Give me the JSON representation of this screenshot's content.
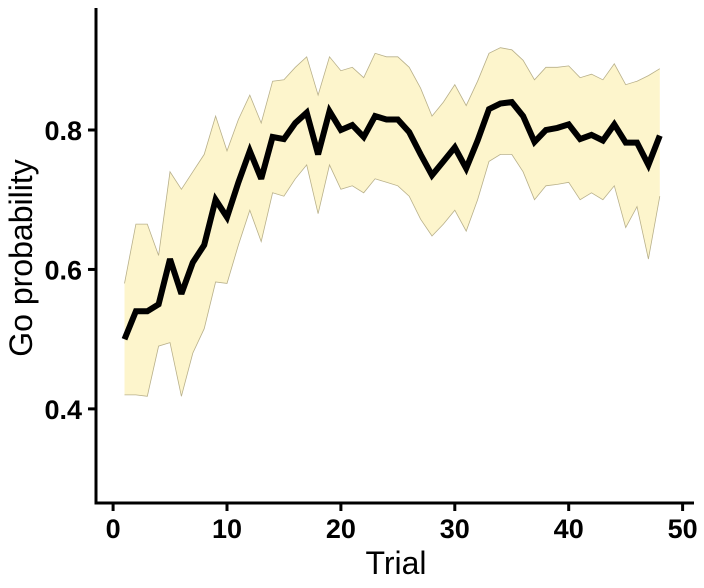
{
  "chart_data": {
    "type": "area",
    "title": "",
    "xlabel": "Trial",
    "ylabel": "Go probability",
    "xlim": [
      -1.5,
      51
    ],
    "ylim": [
      0.265,
      0.975
    ],
    "xticks": [
      0,
      10,
      20,
      30,
      40,
      50
    ],
    "yticks": [
      0.4,
      0.6,
      0.8
    ],
    "xtick_labels": [
      "0",
      "10",
      "20",
      "30",
      "40",
      "50"
    ],
    "ytick_labels": [
      "0.4",
      "0.6",
      "0.8"
    ],
    "grid": false,
    "legend": "none",
    "colors": {
      "line": "#000000",
      "band_fill": "#fdf5cc",
      "band_edge": "#b8b08a",
      "axis": "#000000"
    },
    "series": [
      {
        "role": "mean",
        "x": [
          1,
          2,
          3,
          4,
          5,
          6,
          7,
          8,
          9,
          10,
          11,
          12,
          13,
          14,
          15,
          16,
          17,
          18,
          19,
          20,
          21,
          22,
          23,
          24,
          25,
          26,
          27,
          28,
          29,
          30,
          31,
          32,
          33,
          34,
          35,
          36,
          37,
          38,
          39,
          40,
          41,
          42,
          43,
          44,
          45,
          46,
          47,
          48
        ],
        "y": [
          0.5,
          0.54,
          0.54,
          0.55,
          0.615,
          0.565,
          0.61,
          0.635,
          0.7,
          0.675,
          0.725,
          0.77,
          0.73,
          0.79,
          0.787,
          0.81,
          0.825,
          0.765,
          0.827,
          0.8,
          0.807,
          0.79,
          0.82,
          0.815,
          0.815,
          0.797,
          0.765,
          0.735,
          0.755,
          0.775,
          0.745,
          0.785,
          0.83,
          0.838,
          0.84,
          0.82,
          0.783,
          0.8,
          0.803,
          0.808,
          0.787,
          0.793,
          0.785,
          0.808,
          0.782,
          0.782,
          0.75,
          0.792
        ]
      },
      {
        "role": "upper",
        "x": [
          1,
          2,
          3,
          4,
          5,
          6,
          7,
          8,
          9,
          10,
          11,
          12,
          13,
          14,
          15,
          16,
          17,
          18,
          19,
          20,
          21,
          22,
          23,
          24,
          25,
          26,
          27,
          28,
          29,
          30,
          31,
          32,
          33,
          34,
          35,
          36,
          37,
          38,
          39,
          40,
          41,
          42,
          43,
          44,
          45,
          46,
          47,
          48
        ],
        "y": [
          0.58,
          0.665,
          0.665,
          0.62,
          0.74,
          0.715,
          0.74,
          0.765,
          0.82,
          0.77,
          0.815,
          0.85,
          0.81,
          0.87,
          0.872,
          0.89,
          0.905,
          0.85,
          0.905,
          0.885,
          0.89,
          0.875,
          0.91,
          0.905,
          0.905,
          0.89,
          0.86,
          0.82,
          0.84,
          0.865,
          0.835,
          0.87,
          0.91,
          0.918,
          0.915,
          0.9,
          0.872,
          0.89,
          0.89,
          0.892,
          0.875,
          0.88,
          0.872,
          0.895,
          0.865,
          0.87,
          0.878,
          0.888
        ]
      },
      {
        "role": "lower",
        "x": [
          1,
          2,
          3,
          4,
          5,
          6,
          7,
          8,
          9,
          10,
          11,
          12,
          13,
          14,
          15,
          16,
          17,
          18,
          19,
          20,
          21,
          22,
          23,
          24,
          25,
          26,
          27,
          28,
          29,
          30,
          31,
          32,
          33,
          34,
          35,
          36,
          37,
          38,
          39,
          40,
          41,
          42,
          43,
          44,
          45,
          46,
          47,
          48
        ],
        "y": [
          0.42,
          0.42,
          0.418,
          0.49,
          0.495,
          0.418,
          0.48,
          0.515,
          0.582,
          0.58,
          0.635,
          0.685,
          0.64,
          0.71,
          0.705,
          0.73,
          0.75,
          0.68,
          0.75,
          0.715,
          0.72,
          0.71,
          0.73,
          0.725,
          0.72,
          0.705,
          0.672,
          0.648,
          0.665,
          0.685,
          0.655,
          0.7,
          0.755,
          0.765,
          0.765,
          0.74,
          0.7,
          0.72,
          0.722,
          0.725,
          0.7,
          0.71,
          0.7,
          0.72,
          0.66,
          0.69,
          0.615,
          0.705
        ]
      }
    ]
  }
}
